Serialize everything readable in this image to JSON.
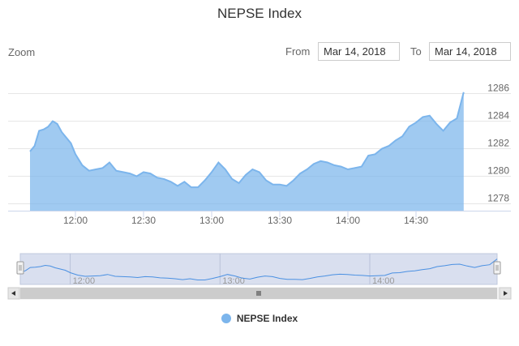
{
  "chart_data": {
    "type": "area",
    "title": "NEPSE Index",
    "xlabel": "",
    "ylabel": "",
    "x_tick_labels": [
      "12:00",
      "12:30",
      "13:00",
      "13:30",
      "14:00",
      "14:30"
    ],
    "y_tick_labels": [
      "1278",
      "1280",
      "1282",
      "1284",
      "1286"
    ],
    "ylim": [
      1277.5,
      1287.5
    ],
    "grid": true,
    "legend_position": "bottom-center",
    "series": [
      {
        "name": "NEPSE Index",
        "color": "#7cb5ec",
        "x": [
          "11:40",
          "11:42",
          "11:44",
          "11:46",
          "11:48",
          "11:50",
          "11:52",
          "11:54",
          "11:56",
          "11:58",
          "12:00",
          "12:03",
          "12:06",
          "12:09",
          "12:12",
          "12:15",
          "12:18",
          "12:21",
          "12:24",
          "12:27",
          "12:30",
          "12:33",
          "12:36",
          "12:39",
          "12:42",
          "12:45",
          "12:48",
          "12:51",
          "12:54",
          "12:57",
          "13:00",
          "13:03",
          "13:06",
          "13:09",
          "13:12",
          "13:15",
          "13:18",
          "13:21",
          "13:24",
          "13:27",
          "13:30",
          "13:33",
          "13:36",
          "13:39",
          "13:42",
          "13:45",
          "13:48",
          "13:51",
          "13:54",
          "13:57",
          "14:00",
          "14:03",
          "14:06",
          "14:09",
          "14:12",
          "14:15",
          "14:18",
          "14:21",
          "14:24",
          "14:27",
          "14:30",
          "14:33",
          "14:36",
          "14:39",
          "14:42",
          "14:45",
          "14:48",
          "14:51"
        ],
        "values": [
          1281.8,
          1282.2,
          1283.3,
          1283.4,
          1283.6,
          1284.0,
          1283.8,
          1283.2,
          1282.8,
          1282.4,
          1281.6,
          1280.8,
          1280.4,
          1280.5,
          1280.6,
          1281.0,
          1280.4,
          1280.3,
          1280.2,
          1280.0,
          1280.3,
          1280.2,
          1279.9,
          1279.8,
          1279.6,
          1279.3,
          1279.6,
          1279.2,
          1279.2,
          1279.7,
          1280.3,
          1281.0,
          1280.5,
          1279.8,
          1279.5,
          1280.1,
          1280.5,
          1280.3,
          1279.7,
          1279.4,
          1279.4,
          1279.3,
          1279.7,
          1280.2,
          1280.5,
          1280.9,
          1281.1,
          1281.0,
          1280.8,
          1280.7,
          1280.5,
          1280.6,
          1280.7,
          1281.5,
          1281.6,
          1282.0,
          1282.2,
          1282.6,
          1282.9,
          1283.6,
          1283.9,
          1284.3,
          1284.4,
          1283.8,
          1283.3,
          1283.9,
          1284.2,
          1286.1
        ]
      }
    ]
  },
  "ui": {
    "zoom_label": "Zoom",
    "from_label": "From",
    "from_value": "Mar 14, 2018",
    "to_label": "To",
    "to_value": "Mar 14, 2018",
    "navigator_labels": [
      "12:00",
      "13:00",
      "14:00"
    ],
    "scroll_left_icon": "left-arrow-icon",
    "scroll_right_icon": "right-arrow-icon",
    "scroll_grip_icon": "grip-icon"
  }
}
